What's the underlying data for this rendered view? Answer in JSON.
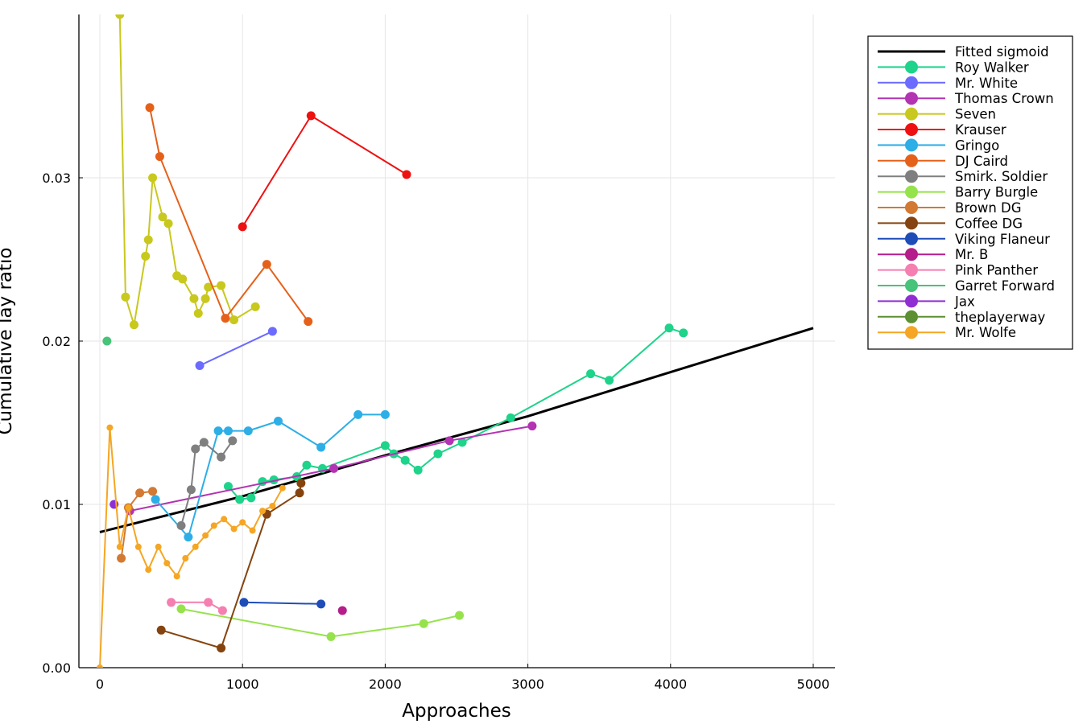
{
  "chart_data": {
    "type": "line",
    "title": "",
    "xlabel": "Approaches",
    "ylabel": "Cumulative lay ratio",
    "xlim": [
      -150,
      5150
    ],
    "ylim": [
      0,
      0.04
    ],
    "xticks": [
      0,
      1000,
      2000,
      3000,
      4000,
      5000
    ],
    "xtick_labels": [
      "0",
      "1000",
      "2000",
      "3000",
      "4000",
      "5000"
    ],
    "yticks": [
      0,
      0.01,
      0.02,
      0.03
    ],
    "ytick_labels": [
      "0.00",
      "0.01",
      "0.02",
      "0.03"
    ],
    "grid": true,
    "legend_position": "top-right, outside plot",
    "fitted": {
      "name": "Fitted sigmoid",
      "color": "#000000",
      "points": [
        [
          0,
          0.0083
        ],
        [
          1000,
          0.0105
        ],
        [
          2000,
          0.013
        ],
        [
          3000,
          0.0154
        ],
        [
          4000,
          0.0181
        ],
        [
          5000,
          0.0208
        ]
      ]
    },
    "series": [
      {
        "name": "Roy Walker",
        "color": "#1ed38a",
        "points": [
          [
            900,
            0.0111
          ],
          [
            980,
            0.0103
          ],
          [
            1060,
            0.0104
          ],
          [
            1140,
            0.0114
          ],
          [
            1220,
            0.0115
          ],
          [
            1380,
            0.0117
          ],
          [
            1450,
            0.0124
          ],
          [
            1560,
            0.0122
          ],
          [
            2000,
            0.0136
          ],
          [
            2060,
            0.0131
          ],
          [
            2140,
            0.0127
          ],
          [
            2230,
            0.0121
          ],
          [
            2370,
            0.0131
          ],
          [
            2540,
            0.0138
          ],
          [
            2880,
            0.0153
          ],
          [
            3440,
            0.018
          ],
          [
            3570,
            0.0176
          ],
          [
            3990,
            0.0208
          ],
          [
            4090,
            0.0205
          ]
        ]
      },
      {
        "name": "Mr. White",
        "color": "#6b6bff",
        "points": [
          [
            700,
            0.0185
          ],
          [
            1210,
            0.0206
          ]
        ]
      },
      {
        "name": "Thomas Crown",
        "color": "#b333b3",
        "points": [
          [
            210,
            0.0096
          ],
          [
            1640,
            0.0122
          ],
          [
            2450,
            0.0139
          ],
          [
            3030,
            0.0148
          ]
        ]
      },
      {
        "name": "Seven",
        "color": "#c8c81e",
        "points": [
          [
            140,
            0.04
          ],
          [
            180,
            0.0227
          ],
          [
            240,
            0.021
          ],
          [
            320,
            0.0252
          ],
          [
            340,
            0.0262
          ],
          [
            370,
            0.03
          ],
          [
            440,
            0.0276
          ],
          [
            480,
            0.0272
          ],
          [
            540,
            0.024
          ],
          [
            580,
            0.0238
          ],
          [
            660,
            0.0226
          ],
          [
            690,
            0.0217
          ],
          [
            740,
            0.0226
          ],
          [
            760,
            0.0233
          ],
          [
            850,
            0.0234
          ],
          [
            940,
            0.0213
          ],
          [
            1090,
            0.0221
          ]
        ]
      },
      {
        "name": "Krauser",
        "color": "#ee1111",
        "points": [
          [
            1000,
            0.027
          ],
          [
            1480,
            0.0338
          ],
          [
            2150,
            0.0302
          ]
        ]
      },
      {
        "name": "Gringo",
        "color": "#2daee6",
        "points": [
          [
            390,
            0.0103
          ],
          [
            620,
            0.008
          ],
          [
            830,
            0.0145
          ],
          [
            900,
            0.0145
          ],
          [
            1040,
            0.0145
          ],
          [
            1250,
            0.0151
          ],
          [
            1550,
            0.0135
          ],
          [
            1810,
            0.0155
          ],
          [
            2000,
            0.0155
          ]
        ]
      },
      {
        "name": "DJ Caird",
        "color": "#e5611a",
        "points": [
          [
            350,
            0.0343
          ],
          [
            420,
            0.0313
          ],
          [
            880,
            0.0214
          ],
          [
            1170,
            0.0247
          ],
          [
            1460,
            0.0212
          ]
        ]
      },
      {
        "name": "Smirk. Soldier",
        "color": "#7f7f7f",
        "points": [
          [
            570,
            0.0087
          ],
          [
            640,
            0.0109
          ],
          [
            670,
            0.0134
          ],
          [
            730,
            0.0138
          ],
          [
            850,
            0.0129
          ],
          [
            930,
            0.0139
          ]
        ]
      },
      {
        "name": "Barry Burgle",
        "color": "#96e24c",
        "points": [
          [
            570,
            0.0036
          ],
          [
            1620,
            0.0019
          ],
          [
            2270,
            0.0027
          ],
          [
            2520,
            0.0032
          ]
        ]
      },
      {
        "name": "Brown DG",
        "color": "#d27933",
        "points": [
          [
            150,
            0.0067
          ],
          [
            200,
            0.0098
          ],
          [
            280,
            0.0107
          ],
          [
            370,
            0.0108
          ]
        ]
      },
      {
        "name": "Coffee DG",
        "color": "#85440f",
        "points": [
          [
            430,
            0.0023
          ],
          [
            850,
            0.0012
          ],
          [
            1170,
            0.0094
          ],
          [
            1400,
            0.0107
          ],
          [
            1410,
            0.0113
          ]
        ]
      },
      {
        "name": "Viking Flaneur",
        "color": "#1f4db8",
        "points": [
          [
            1010,
            0.004
          ],
          [
            1550,
            0.0039
          ]
        ]
      },
      {
        "name": "Mr. B",
        "color": "#b41d8a",
        "points": [
          [
            1700,
            0.0035
          ]
        ]
      },
      {
        "name": "Pink Panther",
        "color": "#f47fb0",
        "points": [
          [
            500,
            0.004
          ],
          [
            760,
            0.004
          ],
          [
            860,
            0.0035
          ]
        ]
      },
      {
        "name": "Garret Forward",
        "color": "#47c37a",
        "points": [
          [
            50,
            0.02
          ]
        ]
      },
      {
        "name": "Jax",
        "color": "#8f2fd2",
        "points": [
          [
            100,
            0.01
          ]
        ]
      },
      {
        "name": "theplayerway",
        "color": "#5c9033",
        "points": []
      },
      {
        "name": "Mr. Wolfe",
        "color": "#f5a623",
        "points": [
          [
            0,
            0.0
          ],
          [
            70,
            0.0147
          ],
          [
            140,
            0.0074
          ],
          [
            200,
            0.0098
          ],
          [
            270,
            0.0074
          ],
          [
            340,
            0.006
          ],
          [
            410,
            0.0074
          ],
          [
            470,
            0.0064
          ],
          [
            540,
            0.0056
          ],
          [
            600,
            0.0067
          ],
          [
            670,
            0.0074
          ],
          [
            740,
            0.0081
          ],
          [
            800,
            0.0087
          ],
          [
            870,
            0.0091
          ],
          [
            940,
            0.0085
          ],
          [
            1000,
            0.0089
          ],
          [
            1070,
            0.0084
          ],
          [
            1140,
            0.0096
          ],
          [
            1210,
            0.0099
          ],
          [
            1280,
            0.011
          ]
        ]
      }
    ]
  }
}
